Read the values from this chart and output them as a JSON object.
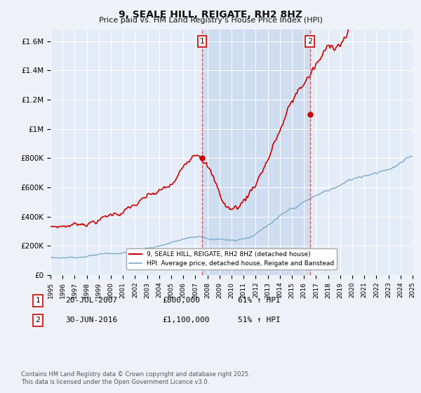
{
  "title": "9, SEALE HILL, REIGATE, RH2 8HZ",
  "subtitle": "Price paid vs. HM Land Registry's House Price Index (HPI)",
  "background_color": "#eef2f8",
  "plot_bg_color": "#e4ecf7",
  "shade_color": "#ccdcf0",
  "y_ticks": [
    0,
    200000,
    400000,
    600000,
    800000,
    1000000,
    1200000,
    1400000,
    1600000
  ],
  "y_tick_labels": [
    "£0",
    "£200K",
    "£400K",
    "£600K",
    "£800K",
    "£1M",
    "£1.2M",
    "£1.4M",
    "£1.6M"
  ],
  "ylim": [
    0,
    1680000
  ],
  "x_start_year": 1995,
  "x_end_year": 2025,
  "sale1_year": 2007.55,
  "sale1_price": 800000,
  "sale2_year": 2016.5,
  "sale2_price": 1100000,
  "legend_label_red": "9, SEALE HILL, REIGATE, RH2 8HZ (detached house)",
  "legend_label_blue": "HPI: Average price, detached house, Reigate and Banstead",
  "footer": "Contains HM Land Registry data © Crown copyright and database right 2025.\nThis data is licensed under the Open Government Licence v3.0.",
  "red_line_color": "#cc0000",
  "blue_line_color": "#7aabcc",
  "vline_color": "#dd4444",
  "grid_color": "#ffffff",
  "title_fontsize": 10,
  "subtitle_fontsize": 8
}
